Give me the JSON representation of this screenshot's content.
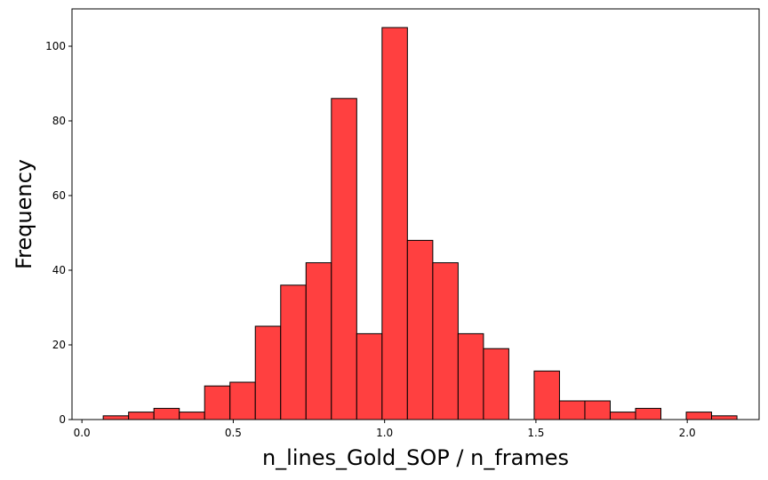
{
  "chart_data": {
    "type": "bar",
    "subtype": "histogram",
    "bar_color": "#ff4040",
    "edge_color": "#000000",
    "xlabel": "n_lines_Gold_SOP / n_frames",
    "ylabel": "Frequency",
    "xlim": [
      -0.0328,
      2.2374
    ],
    "ylim": [
      0,
      110
    ],
    "grid": false,
    "xticks": [
      0.0,
      0.5,
      1.0,
      1.5,
      2.0
    ],
    "xtick_labels": [
      "0.0",
      "0.5",
      "1.0",
      "1.5",
      "2.0"
    ],
    "yticks": [
      0,
      20,
      40,
      60,
      80,
      100
    ],
    "ytick_labels": [
      "0",
      "20",
      "40",
      "60",
      "80",
      "100"
    ],
    "bin_edges": [
      0.0704,
      0.1542,
      0.2379,
      0.3217,
      0.4054,
      0.4892,
      0.5729,
      0.6567,
      0.7404,
      0.8242,
      0.9079,
      0.9917,
      1.0754,
      1.1592,
      1.2429,
      1.3267,
      1.4104,
      1.4942,
      1.5779,
      1.6617,
      1.7454,
      1.8292,
      1.9129,
      1.9967,
      2.0804,
      2.1642
    ],
    "counts": [
      1,
      2,
      3,
      2,
      9,
      10,
      25,
      36,
      42,
      86,
      23,
      105,
      48,
      42,
      23,
      19,
      0,
      13,
      5,
      5,
      2,
      3,
      0,
      2,
      1
    ]
  }
}
